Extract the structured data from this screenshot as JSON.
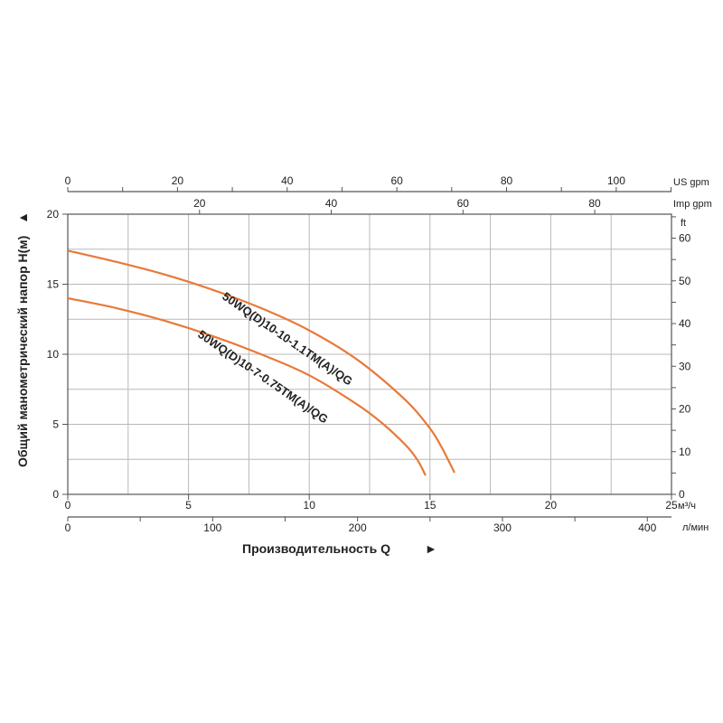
{
  "chart_data": {
    "type": "line",
    "title": "",
    "xlabel": "Производительность Q",
    "ylabel": "Общий манометрический напор  H(м)",
    "xlim": [
      0,
      25
    ],
    "ylim": [
      0,
      20
    ],
    "grid": true,
    "arrow_glyphs": {
      "x": "►",
      "y": "▲"
    },
    "x_ticks": [
      "0",
      "5",
      "10",
      "15",
      "20",
      "25"
    ],
    "y_ticks": [
      "0",
      "5",
      "10",
      "15",
      "20"
    ],
    "x_unit": "м³/ч",
    "secondary_axes": {
      "lpm": {
        "unit": "л/мин",
        "ticks": [
          "0",
          "100",
          "200",
          "300",
          "400"
        ]
      },
      "us_gpm": {
        "unit": "US gpm",
        "ticks": [
          "0",
          "20",
          "40",
          "60",
          "80",
          "100"
        ]
      },
      "imp_gpm": {
        "unit": "Imp gpm",
        "ticks": [
          "20",
          "40",
          "60",
          "80"
        ]
      },
      "ft": {
        "unit": "ft",
        "ticks": [
          "0",
          "10",
          "20",
          "30",
          "40",
          "50",
          "60"
        ]
      }
    },
    "series": [
      {
        "name": "50WQ(D)10-10-1.1TM(A)/QG",
        "color": "#e8793a",
        "x": [
          0,
          2,
          4,
          6,
          8,
          10,
          12,
          14,
          15,
          15.5,
          16
        ],
        "y": [
          17.4,
          16.6,
          15.7,
          14.6,
          13.3,
          11.7,
          9.6,
          6.7,
          4.7,
          3.3,
          1.6
        ]
      },
      {
        "name": "50WQ(D)10-7-0.75TM(A)/QG",
        "color": "#e8793a",
        "x": [
          0,
          2,
          4,
          6,
          8,
          10,
          12,
          13,
          14,
          14.5,
          14.8
        ],
        "y": [
          14.0,
          13.3,
          12.4,
          11.3,
          10.0,
          8.5,
          6.4,
          5.1,
          3.5,
          2.4,
          1.4
        ]
      }
    ]
  }
}
